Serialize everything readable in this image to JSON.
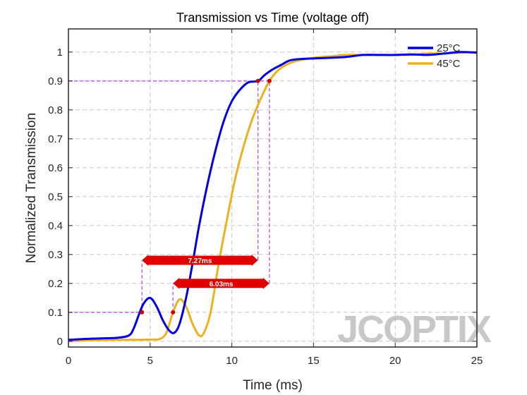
{
  "chart_data": {
    "type": "line",
    "title": "Transmission vs Time (voltage off)",
    "xlabel": "Time (ms)",
    "ylabel": "Normalized Transmission",
    "xlim": [
      0,
      25
    ],
    "ylim": [
      -0.02,
      1.08
    ],
    "xticks": [
      "0",
      "5",
      "10",
      "15",
      "20",
      "25"
    ],
    "yticks": [
      "0",
      "0.1",
      "0.2",
      "0.3",
      "0.4",
      "0.5",
      "0.6",
      "0.7",
      "0.8",
      "0.9",
      "1"
    ],
    "grid": true,
    "legend_position": "top-right",
    "series": [
      {
        "name": "25°C",
        "color": "#0000e0",
        "points": [
          [
            0,
            0.005
          ],
          [
            1,
            0.008
          ],
          [
            2,
            0.01
          ],
          [
            3,
            0.012
          ],
          [
            3.7,
            0.02
          ],
          [
            4,
            0.045
          ],
          [
            4.3,
            0.09
          ],
          [
            4.6,
            0.13
          ],
          [
            5.0,
            0.15
          ],
          [
            5.4,
            0.12
          ],
          [
            5.8,
            0.07
          ],
          [
            6.2,
            0.035
          ],
          [
            6.5,
            0.03
          ],
          [
            6.8,
            0.06
          ],
          [
            7.2,
            0.15
          ],
          [
            7.6,
            0.27
          ],
          [
            8.0,
            0.4
          ],
          [
            8.5,
            0.54
          ],
          [
            9.0,
            0.66
          ],
          [
            9.5,
            0.76
          ],
          [
            10.0,
            0.83
          ],
          [
            10.5,
            0.87
          ],
          [
            11.0,
            0.895
          ],
          [
            11.6,
            0.9
          ],
          [
            12.0,
            0.92
          ],
          [
            12.5,
            0.94
          ],
          [
            13.0,
            0.955
          ],
          [
            13.5,
            0.97
          ],
          [
            14.0,
            0.975
          ],
          [
            15.0,
            0.978
          ],
          [
            16.0,
            0.98
          ],
          [
            17.0,
            0.983
          ],
          [
            18.0,
            0.99
          ],
          [
            19.0,
            0.99
          ],
          [
            20.0,
            0.99
          ],
          [
            21.0,
            0.992
          ],
          [
            22.0,
            0.99
          ],
          [
            23.0,
            0.995
          ],
          [
            24.0,
            1.0
          ],
          [
            25.0,
            0.998
          ]
        ]
      },
      {
        "name": "45°C",
        "color": "#edb120",
        "points": [
          [
            0,
            0.0
          ],
          [
            1,
            0.003
          ],
          [
            2,
            0.004
          ],
          [
            3,
            0.005
          ],
          [
            4,
            0.005
          ],
          [
            5,
            0.006
          ],
          [
            5.6,
            0.008
          ],
          [
            6.0,
            0.03
          ],
          [
            6.4,
            0.1
          ],
          [
            6.8,
            0.145
          ],
          [
            7.2,
            0.12
          ],
          [
            7.6,
            0.06
          ],
          [
            8.0,
            0.02
          ],
          [
            8.3,
            0.03
          ],
          [
            8.7,
            0.1
          ],
          [
            9.2,
            0.27
          ],
          [
            9.7,
            0.42
          ],
          [
            10.2,
            0.56
          ],
          [
            10.7,
            0.67
          ],
          [
            11.2,
            0.76
          ],
          [
            11.7,
            0.83
          ],
          [
            12.3,
            0.9
          ],
          [
            12.8,
            0.935
          ],
          [
            13.3,
            0.955
          ],
          [
            14.0,
            0.97
          ],
          [
            15.0,
            0.98
          ],
          [
            16.0,
            0.985
          ],
          [
            17.0,
            0.99
          ],
          [
            18.0,
            0.99
          ],
          [
            19.0,
            0.99
          ],
          [
            20.0,
            0.99
          ],
          [
            21.0,
            0.99
          ],
          [
            22.0,
            0.995
          ],
          [
            23.0,
            0.995
          ],
          [
            24.0,
            0.998
          ],
          [
            25.0,
            1.0
          ]
        ]
      }
    ],
    "markers": [
      {
        "x": 4.5,
        "y": 0.1,
        "color": "#cc0000"
      },
      {
        "x": 6.4,
        "y": 0.1,
        "color": "#cc0000"
      },
      {
        "x": 11.6,
        "y": 0.9,
        "color": "#cc0000"
      },
      {
        "x": 12.3,
        "y": 0.9,
        "color": "#cc0000"
      }
    ],
    "reference_lines": {
      "color": "#b455e8",
      "horizontal": [
        {
          "y": 0.1,
          "x_from": 0,
          "x_to": 4.5
        },
        {
          "y": 0.9,
          "x_from": 0,
          "x_to": 12.3
        }
      ],
      "vertical": [
        {
          "x": 4.5,
          "y_from": 0.1,
          "y_to": 0.28
        },
        {
          "x": 6.4,
          "y_from": 0.1,
          "y_to": 0.2
        },
        {
          "x": 11.6,
          "y_from": 0.28,
          "y_to": 0.9
        },
        {
          "x": 12.3,
          "y_from": 0.2,
          "y_to": 0.9
        }
      ]
    },
    "annotations": [
      {
        "label": "7.27ms",
        "x_from": 4.5,
        "x_to": 11.6,
        "y": 0.28,
        "color": "#e00000"
      },
      {
        "label": "6.03ms",
        "x_from": 6.4,
        "x_to": 12.3,
        "y": 0.2,
        "color": "#e00000"
      }
    ],
    "watermark": "JCOPTIX"
  }
}
